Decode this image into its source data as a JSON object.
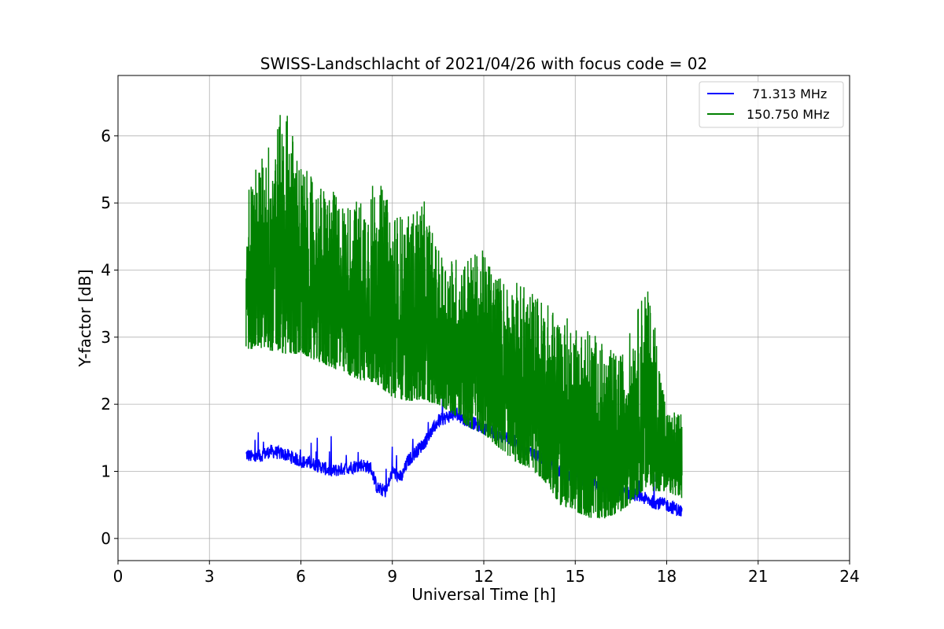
{
  "chart_data": {
    "type": "line",
    "title": "SWISS-Landschlacht of 2021/04/26 with focus code = 02",
    "xlabel": "Universal Time [h]",
    "ylabel": "Y-factor [dB]",
    "xlim": [
      0,
      24
    ],
    "ylim": [
      -0.33,
      6.9
    ],
    "xticks": [
      0,
      3,
      6,
      9,
      12,
      15,
      18,
      21,
      24
    ],
    "yticks": [
      0,
      1,
      2,
      3,
      4,
      5,
      6
    ],
    "grid": true,
    "legend_position": "top-right",
    "series": [
      {
        "name": "71.313 MHz",
        "color": "#0000ff",
        "x": [
          4.2,
          4.5,
          5.0,
          5.5,
          6.0,
          6.5,
          7.0,
          7.5,
          8.0,
          8.3,
          8.5,
          8.8,
          9.0,
          9.3,
          9.5,
          9.8,
          10.0,
          10.3,
          10.5,
          11.0,
          11.5,
          12.0,
          12.5,
          13.0,
          13.5,
          14.0,
          14.5,
          15.0,
          15.5,
          16.0,
          16.5,
          17.0,
          17.5,
          18.0,
          18.5
        ],
        "y": [
          1.25,
          1.2,
          1.3,
          1.25,
          1.15,
          1.1,
          1.0,
          1.05,
          1.1,
          1.05,
          0.75,
          0.7,
          1.0,
          0.9,
          1.15,
          1.3,
          1.4,
          1.6,
          1.75,
          1.85,
          1.75,
          1.65,
          1.55,
          1.45,
          1.3,
          1.15,
          1.0,
          0.9,
          0.8,
          0.75,
          0.7,
          0.65,
          0.55,
          0.5,
          0.4
        ]
      },
      {
        "name": "150.750 MHz",
        "color": "#008000",
        "x": [
          4.2,
          4.6,
          5.0,
          5.5,
          6.0,
          6.5,
          7.0,
          7.5,
          8.0,
          8.5,
          9.0,
          9.5,
          10.0,
          10.5,
          11.0,
          11.5,
          12.0,
          12.5,
          13.0,
          13.5,
          14.0,
          14.5,
          15.0,
          15.5,
          16.0,
          16.5,
          17.0,
          17.3,
          17.6,
          18.0,
          18.5
        ],
        "y_low": [
          2.8,
          2.85,
          2.8,
          2.75,
          2.75,
          2.65,
          2.55,
          2.45,
          2.35,
          2.3,
          2.1,
          2.05,
          2.05,
          2.0,
          1.85,
          1.65,
          1.55,
          1.35,
          1.15,
          1.05,
          0.85,
          0.5,
          0.4,
          0.3,
          0.3,
          0.4,
          0.6,
          0.75,
          0.7,
          0.7,
          0.6
        ],
        "y_high": [
          5.3,
          5.6,
          6.0,
          6.5,
          5.6,
          5.3,
          5.2,
          5.0,
          5.1,
          5.4,
          4.9,
          4.8,
          5.1,
          4.3,
          4.2,
          4.25,
          4.3,
          3.95,
          3.85,
          3.75,
          3.55,
          3.35,
          3.25,
          3.15,
          2.85,
          2.75,
          3.35,
          3.85,
          3.3,
          1.9,
          1.9
        ]
      }
    ]
  }
}
